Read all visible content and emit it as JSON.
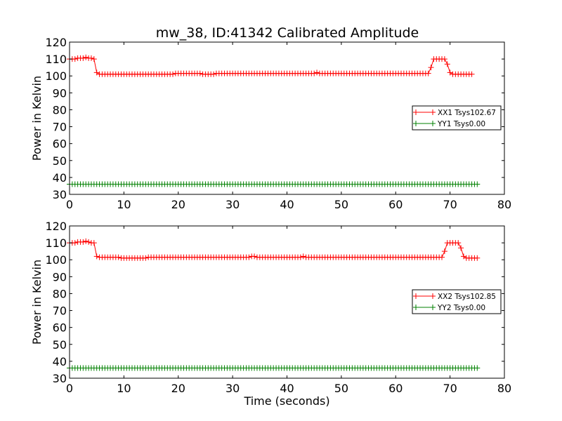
{
  "figure_title": "mw_38, ID:41342 Calibrated Amplitude",
  "chart_data": [
    {
      "type": "line",
      "xlabel": "",
      "ylabel": "Power in Kelvin",
      "xlim": [
        0,
        80
      ],
      "ylim": [
        30,
        120
      ],
      "xticks": [
        0,
        10,
        20,
        30,
        40,
        50,
        60,
        70,
        80
      ],
      "yticks": [
        30,
        40,
        50,
        60,
        70,
        80,
        90,
        100,
        110,
        120
      ],
      "grid": false,
      "legend_position": "center-right",
      "x": {
        "start": 0,
        "step": 0.5,
        "end": 75
      },
      "series": [
        {
          "name": "XX1 Tsys102.67",
          "color": "#ff0000",
          "marker": "plus",
          "values": [
            110,
            110,
            110,
            110.5,
            110.5,
            110.5,
            111,
            110.5,
            110.5,
            110,
            102,
            101,
            101,
            101,
            101,
            101,
            101,
            101,
            101,
            101,
            101,
            101,
            101,
            101,
            101,
            101,
            101,
            101,
            101,
            101,
            101,
            101,
            101,
            101,
            101,
            101,
            101,
            101,
            101,
            101.5,
            101.5,
            101.5,
            101.5,
            101.5,
            101.5,
            101.5,
            101.5,
            101.5,
            101.5,
            101,
            101,
            101,
            101,
            101,
            101.5,
            101.5,
            101.5,
            101.5,
            101.5,
            101.5,
            101.5,
            101.5,
            101.5,
            101.5,
            101.5,
            101.5,
            101.5,
            101.5,
            101.5,
            101.5,
            101.5,
            101.5,
            101.5,
            101.5,
            101.5,
            101.5,
            101.5,
            101.5,
            101.5,
            101.5,
            101.5,
            101.5,
            101.5,
            101.5,
            101.5,
            101.5,
            101.5,
            101.5,
            101.5,
            101.5,
            101.5,
            102,
            101.5,
            101.5,
            101.5,
            101.5,
            101.5,
            101.5,
            101.5,
            101.5,
            101.5,
            101.5,
            101.5,
            101.5,
            101.5,
            101.5,
            101.5,
            101.5,
            101.5,
            101.5,
            101.5,
            101.5,
            101.5,
            101.5,
            101.5,
            101.5,
            101.5,
            101.5,
            101.5,
            101.5,
            101.5,
            101.5,
            101.5,
            101.5,
            101.5,
            101.5,
            101.5,
            101.5,
            101.5,
            101.5,
            101.5,
            101.5,
            101.5,
            105,
            110,
            110,
            110,
            110,
            110,
            107,
            102,
            101,
            101,
            101,
            101,
            101,
            101,
            101,
            101
          ]
        },
        {
          "name": "YY1 Tsys0.00",
          "color": "#008000",
          "marker": "plus",
          "constant": 36
        }
      ]
    },
    {
      "type": "line",
      "xlabel": "Time (seconds)",
      "ylabel": "Power in Kelvin",
      "xlim": [
        0,
        80
      ],
      "ylim": [
        30,
        120
      ],
      "xticks": [
        0,
        10,
        20,
        30,
        40,
        50,
        60,
        70,
        80
      ],
      "yticks": [
        30,
        40,
        50,
        60,
        70,
        80,
        90,
        100,
        110,
        120
      ],
      "grid": false,
      "legend_position": "center-right",
      "x": {
        "start": 0,
        "step": 0.5,
        "end": 75
      },
      "series": [
        {
          "name": "XX2 Tsys102.85",
          "color": "#ff0000",
          "marker": "plus",
          "values": [
            110,
            110,
            110,
            110.5,
            110.5,
            110.5,
            111,
            110.5,
            110,
            110,
            102,
            101.5,
            101.5,
            101.5,
            101.5,
            101.5,
            101.5,
            101.5,
            101.5,
            101,
            101,
            101,
            101,
            101,
            101,
            101,
            101,
            101,
            101,
            101.5,
            101.5,
            101.5,
            101.5,
            101.5,
            101.5,
            101.5,
            101.5,
            101.5,
            101.5,
            101.5,
            101.5,
            101.5,
            101.5,
            101.5,
            101.5,
            101.5,
            101.5,
            101.5,
            101.5,
            101.5,
            101.5,
            101.5,
            101.5,
            101.5,
            101.5,
            101.5,
            101.5,
            101.5,
            101.5,
            101.5,
            101.5,
            101.5,
            101.5,
            101.5,
            101.5,
            101.5,
            101.5,
            102,
            102,
            101.5,
            101.5,
            101.5,
            101.5,
            101.5,
            101.5,
            101.5,
            101.5,
            101.5,
            101.5,
            101.5,
            101.5,
            101.5,
            101.5,
            101.5,
            101.5,
            101.5,
            102,
            101.5,
            101.5,
            101.5,
            101.5,
            101.5,
            101.5,
            101.5,
            101.5,
            101.5,
            101.5,
            101.5,
            101.5,
            101.5,
            101.5,
            101.5,
            101.5,
            101.5,
            101.5,
            101.5,
            101.5,
            101.5,
            101.5,
            101.5,
            101.5,
            101.5,
            101.5,
            101.5,
            101.5,
            101.5,
            101.5,
            101.5,
            101.5,
            101.5,
            101.5,
            101.5,
            101.5,
            101.5,
            101.5,
            101.5,
            101.5,
            101.5,
            101.5,
            101.5,
            101.5,
            101.5,
            101.5,
            101.5,
            101.5,
            101.5,
            101.5,
            101.5,
            105,
            110,
            110,
            110,
            110,
            110,
            107,
            102,
            101,
            101,
            101,
            101,
            101,
            101,
            101,
            101
          ]
        },
        {
          "name": "YY2 Tsys0.00",
          "color": "#008000",
          "marker": "plus",
          "constant": 36
        }
      ]
    }
  ]
}
